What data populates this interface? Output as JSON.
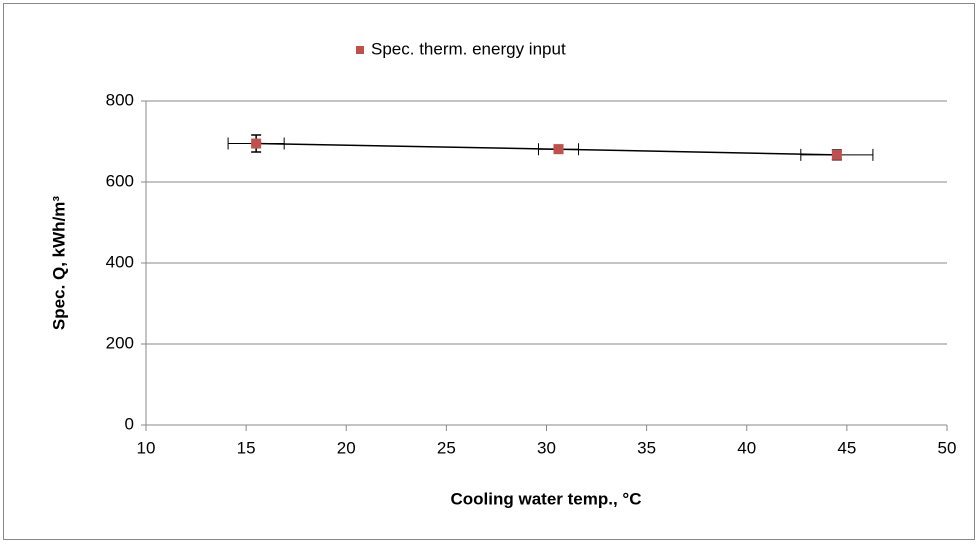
{
  "chart_data": {
    "type": "scatter",
    "series": [
      {
        "name": "Spec. therm. energy input",
        "color": "#c0504d",
        "x": [
          15.5,
          30.6,
          44.5
        ],
        "values": [
          695,
          681,
          667
        ],
        "xerr": [
          1.4,
          1.0,
          1.8
        ],
        "yerr": [
          21,
          10,
          12
        ]
      }
    ],
    "line_color": "#000000",
    "xlabel": "Cooling water temp.,  °C",
    "ylabel": "Spec. Q, kWh/m³",
    "xlim": [
      10,
      50
    ],
    "xticks": [
      10,
      15,
      20,
      25,
      30,
      35,
      40,
      45,
      50
    ],
    "ylim": [
      0,
      800
    ],
    "yticks": [
      0,
      200,
      400,
      600,
      800
    ],
    "grid": true,
    "legend": "top"
  }
}
